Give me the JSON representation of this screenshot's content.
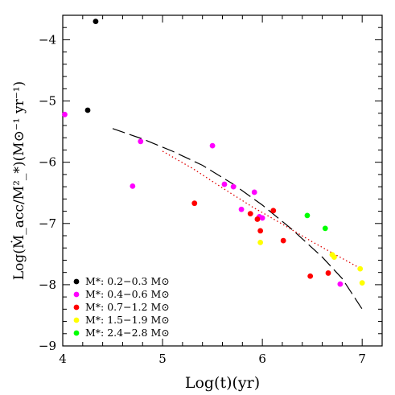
{
  "chart_data": {
    "type": "scatter",
    "title": "",
    "xlabel": "Log(t)(yr)",
    "ylabel": "Log(Ṁ_acc/M²_*)(M⊙⁻¹ yr⁻¹)",
    "xlim": [
      4,
      7.2
    ],
    "ylim": [
      -9,
      -3.6
    ],
    "x_ticks": [
      4,
      5,
      6,
      7
    ],
    "x_tick_labels": [
      "4",
      "5",
      "6",
      "7"
    ],
    "y_ticks": [
      -4,
      -5,
      -6,
      -7,
      -8,
      -9
    ],
    "y_tick_labels": [
      "−4",
      "−5",
      "−6",
      "−7",
      "−8",
      "−9"
    ],
    "grid": false,
    "legend_position": "bottom-left",
    "series": [
      {
        "name": "M*: 0.2−0.3 M⊙",
        "color": "#000000",
        "points": [
          [
            4.33,
            -3.7
          ],
          [
            4.25,
            -5.15
          ]
        ]
      },
      {
        "name": "M*: 0.4−0.6 M⊙",
        "color": "#ff00ff",
        "points": [
          [
            4.02,
            -5.22
          ],
          [
            4.78,
            -5.66
          ],
          [
            4.7,
            -6.39
          ],
          [
            5.5,
            -5.73
          ],
          [
            5.62,
            -6.36
          ],
          [
            5.71,
            -6.4
          ],
          [
            5.79,
            -6.77
          ],
          [
            5.92,
            -6.49
          ],
          [
            5.97,
            -6.89
          ],
          [
            6.0,
            -6.91
          ],
          [
            6.78,
            -7.99
          ]
        ]
      },
      {
        "name": "M*: 0.7−1.2 M⊙",
        "color": "#ff0000",
        "points": [
          [
            5.32,
            -6.67
          ],
          [
            5.88,
            -6.84
          ],
          [
            5.95,
            -6.93
          ],
          [
            5.98,
            -7.12
          ],
          [
            6.11,
            -6.79
          ],
          [
            6.21,
            -7.28
          ],
          [
            6.48,
            -7.86
          ],
          [
            6.66,
            -7.81
          ]
        ]
      },
      {
        "name": "M*: 1.5−1.9 M⊙",
        "color": "#ffff00",
        "points": [
          [
            5.98,
            -7.31
          ],
          [
            6.7,
            -7.51
          ],
          [
            6.72,
            -7.55
          ],
          [
            6.98,
            -7.74
          ],
          [
            7.0,
            -7.97
          ]
        ]
      },
      {
        "name": "M*: 2.4−2.8 M⊙",
        "color": "#00ff00",
        "points": [
          [
            6.45,
            -6.87
          ],
          [
            6.63,
            -7.08
          ]
        ]
      }
    ],
    "fit_lines": [
      {
        "style": "long-dash",
        "color": "#000000",
        "points": [
          [
            4.5,
            -5.45
          ],
          [
            4.8,
            -5.62
          ],
          [
            5.1,
            -5.82
          ],
          [
            5.4,
            -6.05
          ],
          [
            5.7,
            -6.35
          ],
          [
            6.0,
            -6.7
          ],
          [
            6.3,
            -7.1
          ],
          [
            6.6,
            -7.55
          ],
          [
            6.8,
            -7.9
          ],
          [
            7.0,
            -8.4
          ]
        ]
      },
      {
        "style": "dotted",
        "color": "#e00000",
        "points": [
          [
            5.0,
            -5.82
          ],
          [
            5.3,
            -6.1
          ],
          [
            5.6,
            -6.42
          ],
          [
            5.9,
            -6.73
          ],
          [
            6.2,
            -7.01
          ],
          [
            6.5,
            -7.3
          ],
          [
            6.8,
            -7.57
          ],
          [
            7.0,
            -7.75
          ]
        ]
      }
    ]
  }
}
